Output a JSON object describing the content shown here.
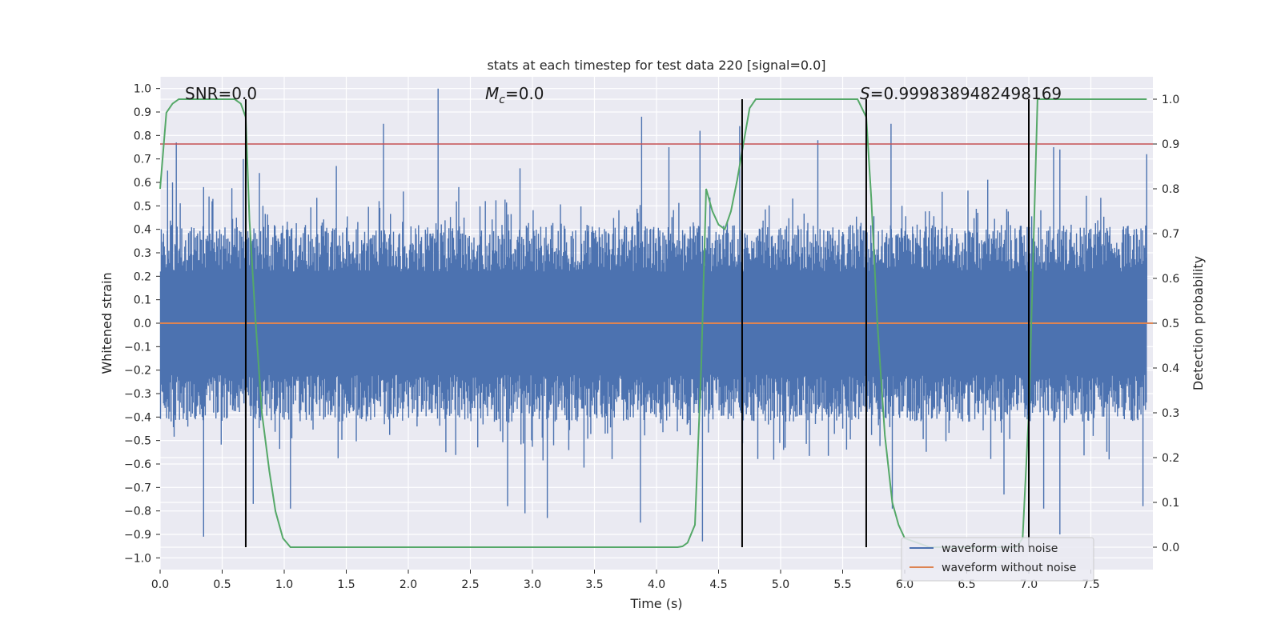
{
  "chart_data": {
    "type": "line",
    "title": "stats at each timestep for test data 220 [signal=0.0]",
    "xlabel": "Time (s)",
    "ylabel_left": "Whitened strain",
    "ylabel_right": "Detection probability",
    "xlim": [
      0.0,
      8.0
    ],
    "ylim_left": [
      -1.05,
      1.05
    ],
    "ylim_right": [
      -0.05,
      1.05
    ],
    "xticks": [
      0.0,
      0.5,
      1.0,
      1.5,
      2.0,
      2.5,
      3.0,
      3.5,
      4.0,
      4.5,
      5.0,
      5.5,
      6.0,
      6.5,
      7.0,
      7.5
    ],
    "xtick_labels": [
      "0.0",
      "0.5",
      "1.0",
      "1.5",
      "2.0",
      "2.5",
      "3.0",
      "3.5",
      "4.0",
      "4.5",
      "5.0",
      "5.5",
      "6.0",
      "6.5",
      "7.0",
      "7.5"
    ],
    "yticks_left": [
      -1.0,
      -0.9,
      -0.8,
      -0.7,
      -0.6,
      -0.5,
      -0.4,
      -0.3,
      -0.2,
      -0.1,
      0.0,
      0.1,
      0.2,
      0.3,
      0.4,
      0.5,
      0.6,
      0.7,
      0.8,
      0.9,
      1.0
    ],
    "ytick_labels_left": [
      "−1.0",
      "−0.9",
      "−0.8",
      "−0.7",
      "−0.6",
      "−0.5",
      "−0.4",
      "−0.3",
      "−0.2",
      "−0.1",
      "0.0",
      "0.1",
      "0.2",
      "0.3",
      "0.4",
      "0.5",
      "0.6",
      "0.7",
      "0.8",
      "0.9",
      "1.0"
    ],
    "yticks_right": [
      0.0,
      0.1,
      0.2,
      0.3,
      0.4,
      0.5,
      0.6,
      0.7,
      0.8,
      0.9,
      1.0
    ],
    "ytick_labels_right": [
      "0.0",
      "0.1",
      "0.2",
      "0.3",
      "0.4",
      "0.5",
      "0.6",
      "0.7",
      "0.8",
      "0.9",
      "1.0"
    ],
    "grid": true,
    "annotations": {
      "snr": "SNR=0.0",
      "mc_symbol": "M",
      "mc_sub": "c",
      "mc_value": "=0.0",
      "s_symbol": "S",
      "s_value": "=0.9998389482498169"
    },
    "threshold_line": {
      "axis": "right",
      "value": 0.9,
      "color": "#c44e52"
    },
    "vertical_lines": [
      0.69,
      4.69,
      5.69,
      7.0
    ],
    "series": [
      {
        "name": "waveform with noise",
        "color": "#4c72b0",
        "axis": "left",
        "envelope_upper_typical": 0.4,
        "envelope_lower_typical": -0.4,
        "peaks": [
          [
            0.06,
            0.65
          ],
          [
            0.1,
            0.6
          ],
          [
            0.13,
            0.77
          ],
          [
            0.35,
            0.58
          ],
          [
            0.67,
            0.7
          ],
          [
            0.8,
            0.64
          ],
          [
            1.42,
            0.67
          ],
          [
            1.8,
            0.85
          ],
          [
            2.24,
            1.0
          ],
          [
            2.9,
            0.66
          ],
          [
            3.88,
            0.88
          ],
          [
            4.1,
            0.75
          ],
          [
            4.35,
            0.82
          ],
          [
            4.67,
            0.84
          ],
          [
            5.3,
            0.78
          ],
          [
            5.89,
            0.85
          ],
          [
            7.2,
            0.75
          ],
          [
            7.25,
            0.74
          ],
          [
            7.95,
            0.72
          ]
        ],
        "troughs": [
          [
            0.35,
            -0.91
          ],
          [
            0.75,
            -0.77
          ],
          [
            1.05,
            -0.79
          ],
          [
            2.8,
            -0.78
          ],
          [
            2.94,
            -0.81
          ],
          [
            3.12,
            -0.83
          ],
          [
            3.87,
            -0.85
          ],
          [
            4.37,
            -0.93
          ],
          [
            5.9,
            -0.79
          ],
          [
            6.8,
            -0.73
          ],
          [
            7.12,
            -0.79
          ],
          [
            7.25,
            -0.9
          ],
          [
            7.92,
            -0.78
          ]
        ]
      },
      {
        "name": "waveform without noise",
        "color": "#dd8452",
        "axis": "left",
        "x": [
          0.0,
          8.0
        ],
        "y": [
          0.0,
          0.0
        ]
      },
      {
        "name": "detection probability",
        "color": "#55a868",
        "axis": "right",
        "x": [
          0.0,
          0.05,
          0.1,
          0.15,
          0.2,
          0.3,
          0.4,
          0.5,
          0.6,
          0.65,
          0.69,
          0.72,
          0.77,
          0.82,
          0.88,
          0.93,
          0.99,
          1.05,
          1.5,
          2.0,
          2.5,
          3.0,
          3.5,
          4.0,
          4.17,
          4.21,
          4.25,
          4.31,
          4.36,
          4.4,
          4.45,
          4.5,
          4.55,
          4.6,
          4.65,
          4.7,
          4.75,
          4.8,
          4.85,
          5.0,
          5.5,
          5.62,
          5.69,
          5.73,
          5.78,
          5.84,
          5.9,
          5.95,
          6.0,
          6.2,
          6.5,
          6.8,
          6.9,
          6.95,
          7.0,
          7.03,
          7.07,
          7.1,
          7.5,
          7.95
        ],
        "y": [
          0.8,
          0.97,
          0.99,
          1.0,
          1.0,
          1.0,
          1.0,
          1.0,
          1.0,
          0.99,
          0.96,
          0.73,
          0.5,
          0.3,
          0.17,
          0.08,
          0.02,
          0.0,
          0.0,
          0.0,
          0.0,
          0.0,
          0.0,
          0.0,
          0.0,
          0.002,
          0.01,
          0.05,
          0.4,
          0.8,
          0.75,
          0.72,
          0.71,
          0.75,
          0.82,
          0.9,
          0.98,
          1.0,
          1.0,
          1.0,
          1.0,
          1.0,
          0.96,
          0.78,
          0.5,
          0.25,
          0.1,
          0.05,
          0.02,
          0.0,
          0.0,
          0.0,
          0.0,
          0.02,
          0.3,
          0.6,
          1.0,
          1.0,
          1.0,
          1.0
        ]
      }
    ],
    "legend": {
      "location": "lower-right",
      "entries": [
        {
          "label": "waveform with noise",
          "color": "#4c72b0"
        },
        {
          "label": "waveform without noise",
          "color": "#dd8452"
        }
      ]
    }
  }
}
